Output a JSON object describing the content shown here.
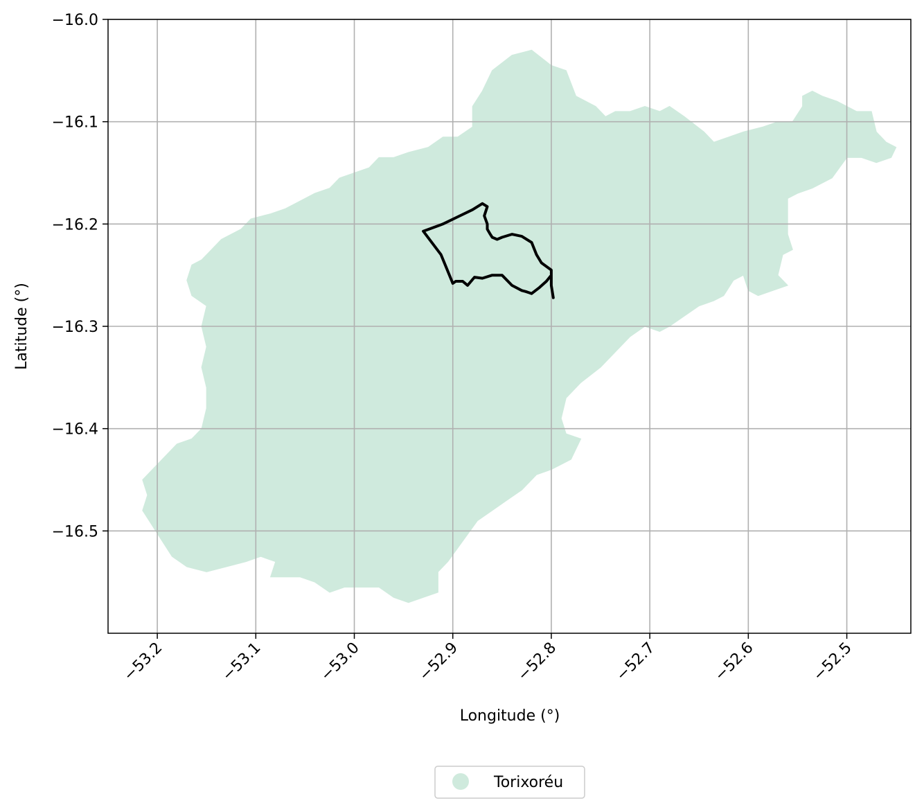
{
  "chart_data": {
    "type": "map",
    "xlabel": "Longitude (°)",
    "ylabel": "Latitude (°)",
    "xlim": [
      -53.25,
      -52.435
    ],
    "ylim": [
      -16.6,
      -16.0
    ],
    "grid": true,
    "legend_placement": "bottom-center",
    "xticks": [
      {
        "value": -53.2,
        "label": "−53.2"
      },
      {
        "value": -53.1,
        "label": "−53.1"
      },
      {
        "value": -53.0,
        "label": "−53.0"
      },
      {
        "value": -52.9,
        "label": "−52.9"
      },
      {
        "value": -52.8,
        "label": "−52.8"
      },
      {
        "value": -52.7,
        "label": "−52.7"
      },
      {
        "value": -52.6,
        "label": "−52.6"
      },
      {
        "value": -52.5,
        "label": "−52.5"
      }
    ],
    "yticks": [
      {
        "value": -16.0,
        "label": "−16.0"
      },
      {
        "value": -16.1,
        "label": "−16.1"
      },
      {
        "value": -16.2,
        "label": "−16.2"
      },
      {
        "value": -16.3,
        "label": "−16.3"
      },
      {
        "value": -16.4,
        "label": "−16.4"
      },
      {
        "value": -16.5,
        "label": "−16.5"
      }
    ],
    "series": [
      {
        "name": "Torixoréu",
        "kind": "filled-region",
        "color": "#cfeadd",
        "coords": [
          [
            -52.86,
            -16.05
          ],
          [
            -52.84,
            -16.035
          ],
          [
            -52.82,
            -16.03
          ],
          [
            -52.8,
            -16.045
          ],
          [
            -52.785,
            -16.05
          ],
          [
            -52.775,
            -16.075
          ],
          [
            -52.755,
            -16.085
          ],
          [
            -52.745,
            -16.095
          ],
          [
            -52.735,
            -16.09
          ],
          [
            -52.72,
            -16.09
          ],
          [
            -52.705,
            -16.085
          ],
          [
            -52.69,
            -16.09
          ],
          [
            -52.68,
            -16.085
          ],
          [
            -52.665,
            -16.095
          ],
          [
            -52.645,
            -16.11
          ],
          [
            -52.635,
            -16.12
          ],
          [
            -52.62,
            -16.115
          ],
          [
            -52.605,
            -16.11
          ],
          [
            -52.585,
            -16.105
          ],
          [
            -52.57,
            -16.1
          ],
          [
            -52.555,
            -16.1
          ],
          [
            -52.545,
            -16.085
          ],
          [
            -52.545,
            -16.075
          ],
          [
            -52.535,
            -16.07
          ],
          [
            -52.525,
            -16.075
          ],
          [
            -52.51,
            -16.08
          ],
          [
            -52.49,
            -16.09
          ],
          [
            -52.475,
            -16.09
          ],
          [
            -52.47,
            -16.11
          ],
          [
            -52.46,
            -16.12
          ],
          [
            -52.45,
            -16.125
          ],
          [
            -52.455,
            -16.135
          ],
          [
            -52.47,
            -16.14
          ],
          [
            -52.485,
            -16.135
          ],
          [
            -52.5,
            -16.135
          ],
          [
            -52.515,
            -16.155
          ],
          [
            -52.535,
            -16.165
          ],
          [
            -52.55,
            -16.17
          ],
          [
            -52.56,
            -16.175
          ],
          [
            -52.56,
            -16.195
          ],
          [
            -52.56,
            -16.21
          ],
          [
            -52.555,
            -16.225
          ],
          [
            -52.565,
            -16.23
          ],
          [
            -52.57,
            -16.25
          ],
          [
            -52.56,
            -16.26
          ],
          [
            -52.575,
            -16.265
          ],
          [
            -52.59,
            -16.27
          ],
          [
            -52.6,
            -16.265
          ],
          [
            -52.605,
            -16.25
          ],
          [
            -52.615,
            -16.255
          ],
          [
            -52.625,
            -16.27
          ],
          [
            -52.635,
            -16.275
          ],
          [
            -52.65,
            -16.28
          ],
          [
            -52.665,
            -16.29
          ],
          [
            -52.68,
            -16.3
          ],
          [
            -52.69,
            -16.305
          ],
          [
            -52.705,
            -16.3
          ],
          [
            -52.72,
            -16.31
          ],
          [
            -52.735,
            -16.325
          ],
          [
            -52.75,
            -16.34
          ],
          [
            -52.77,
            -16.355
          ],
          [
            -52.785,
            -16.37
          ],
          [
            -52.79,
            -16.39
          ],
          [
            -52.785,
            -16.405
          ],
          [
            -52.77,
            -16.41
          ],
          [
            -52.78,
            -16.43
          ],
          [
            -52.8,
            -16.44
          ],
          [
            -52.815,
            -16.445
          ],
          [
            -52.83,
            -16.46
          ],
          [
            -52.845,
            -16.47
          ],
          [
            -52.86,
            -16.48
          ],
          [
            -52.875,
            -16.49
          ],
          [
            -52.89,
            -16.51
          ],
          [
            -52.905,
            -16.53
          ],
          [
            -52.915,
            -16.54
          ],
          [
            -52.915,
            -16.56
          ],
          [
            -52.93,
            -16.565
          ],
          [
            -52.945,
            -16.57
          ],
          [
            -52.96,
            -16.565
          ],
          [
            -52.975,
            -16.555
          ],
          [
            -52.995,
            -16.555
          ],
          [
            -53.01,
            -16.555
          ],
          [
            -53.025,
            -16.56
          ],
          [
            -53.04,
            -16.55
          ],
          [
            -53.055,
            -16.545
          ],
          [
            -53.075,
            -16.545
          ],
          [
            -53.085,
            -16.545
          ],
          [
            -53.08,
            -16.53
          ],
          [
            -53.095,
            -16.525
          ],
          [
            -53.11,
            -16.53
          ],
          [
            -53.13,
            -16.535
          ],
          [
            -53.15,
            -16.54
          ],
          [
            -53.17,
            -16.535
          ],
          [
            -53.185,
            -16.525
          ],
          [
            -53.195,
            -16.51
          ],
          [
            -53.205,
            -16.495
          ],
          [
            -53.215,
            -16.48
          ],
          [
            -53.21,
            -16.465
          ],
          [
            -53.215,
            -16.45
          ],
          [
            -53.205,
            -16.44
          ],
          [
            -53.195,
            -16.43
          ],
          [
            -53.18,
            -16.415
          ],
          [
            -53.165,
            -16.41
          ],
          [
            -53.155,
            -16.4
          ],
          [
            -53.15,
            -16.38
          ],
          [
            -53.15,
            -16.36
          ],
          [
            -53.155,
            -16.34
          ],
          [
            -53.15,
            -16.32
          ],
          [
            -53.155,
            -16.3
          ],
          [
            -53.15,
            -16.28
          ],
          [
            -53.165,
            -16.27
          ],
          [
            -53.17,
            -16.255
          ],
          [
            -53.165,
            -16.24
          ],
          [
            -53.155,
            -16.235
          ],
          [
            -53.145,
            -16.225
          ],
          [
            -53.135,
            -16.215
          ],
          [
            -53.115,
            -16.205
          ],
          [
            -53.105,
            -16.195
          ],
          [
            -53.085,
            -16.19
          ],
          [
            -53.07,
            -16.185
          ],
          [
            -53.06,
            -16.18
          ],
          [
            -53.04,
            -16.17
          ],
          [
            -53.025,
            -16.165
          ],
          [
            -53.015,
            -16.155
          ],
          [
            -53.0,
            -16.15
          ],
          [
            -52.985,
            -16.145
          ],
          [
            -52.975,
            -16.135
          ],
          [
            -52.96,
            -16.135
          ],
          [
            -52.945,
            -16.13
          ],
          [
            -52.925,
            -16.125
          ],
          [
            -52.91,
            -16.115
          ],
          [
            -52.895,
            -16.115
          ],
          [
            -52.88,
            -16.105
          ],
          [
            -52.88,
            -16.085
          ],
          [
            -52.87,
            -16.07
          ],
          [
            -52.865,
            -16.06
          ]
        ]
      },
      {
        "name": "",
        "kind": "outline",
        "color": "#000000",
        "coords": [
          [
            -52.93,
            -16.207
          ],
          [
            -52.91,
            -16.2
          ],
          [
            -52.895,
            -16.193
          ],
          [
            -52.88,
            -16.186
          ],
          [
            -52.87,
            -16.18
          ],
          [
            -52.865,
            -16.183
          ],
          [
            -52.868,
            -16.192
          ],
          [
            -52.865,
            -16.2
          ],
          [
            -52.865,
            -16.205
          ],
          [
            -52.862,
            -16.21
          ],
          [
            -52.86,
            -16.213
          ],
          [
            -52.855,
            -16.215
          ],
          [
            -52.85,
            -16.213
          ],
          [
            -52.84,
            -16.21
          ],
          [
            -52.83,
            -16.212
          ],
          [
            -52.82,
            -16.218
          ],
          [
            -52.815,
            -16.23
          ],
          [
            -52.81,
            -16.238
          ],
          [
            -52.8,
            -16.245
          ],
          [
            -52.8,
            -16.26
          ],
          [
            -52.798,
            -16.272
          ],
          [
            -52.8,
            -16.26
          ],
          [
            -52.8,
            -16.25
          ],
          [
            -52.805,
            -16.256
          ],
          [
            -52.812,
            -16.262
          ],
          [
            -52.82,
            -16.268
          ],
          [
            -52.826,
            -16.266
          ],
          [
            -52.83,
            -16.265
          ],
          [
            -52.84,
            -16.26
          ],
          [
            -52.85,
            -16.25
          ],
          [
            -52.86,
            -16.25
          ],
          [
            -52.87,
            -16.253
          ],
          [
            -52.878,
            -16.252
          ],
          [
            -52.885,
            -16.26
          ],
          [
            -52.89,
            -16.256
          ],
          [
            -52.897,
            -16.256
          ],
          [
            -52.9,
            -16.258
          ],
          [
            -52.912,
            -16.23
          ],
          [
            -52.93,
            -16.207
          ]
        ]
      }
    ],
    "legend": [
      {
        "label": "Torixoréu",
        "color": "#cfeadd",
        "marker": "circle"
      }
    ]
  }
}
